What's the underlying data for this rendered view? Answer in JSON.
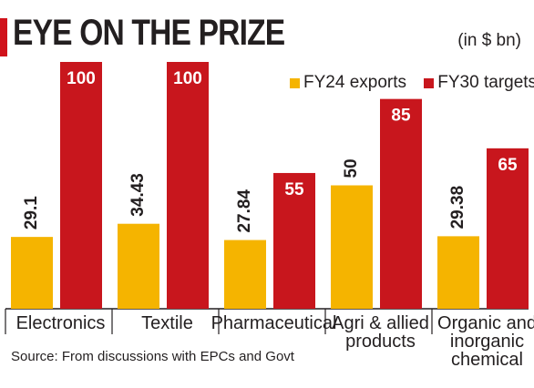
{
  "title": "EYE ON THE PRIZE",
  "units": "(in $ bn)",
  "source": "Source: From discussions with EPCs and Govt",
  "colors": {
    "fy24": "#f5b400",
    "fy30": "#c8161d",
    "accent": "#d0121b"
  },
  "chart_data": {
    "type": "bar",
    "categories": [
      "Electronics",
      "Textile",
      "Pharmaceutical",
      "Agri & allied products",
      "Organic and inorganic chemical"
    ],
    "series": [
      {
        "name": "FY24 exports",
        "values": [
          29.1,
          34.43,
          27.84,
          50,
          29.38
        ]
      },
      {
        "name": "FY30 targets",
        "values": [
          100,
          100,
          55,
          85,
          65
        ]
      }
    ],
    "value_labels": [
      [
        "29.1",
        "34.43",
        "27.84",
        "50",
        "29.38"
      ],
      [
        "100",
        "100",
        "55",
        "85",
        "65"
      ]
    ],
    "ylim": [
      0,
      100
    ],
    "grid": false,
    "legend": "top-right"
  }
}
